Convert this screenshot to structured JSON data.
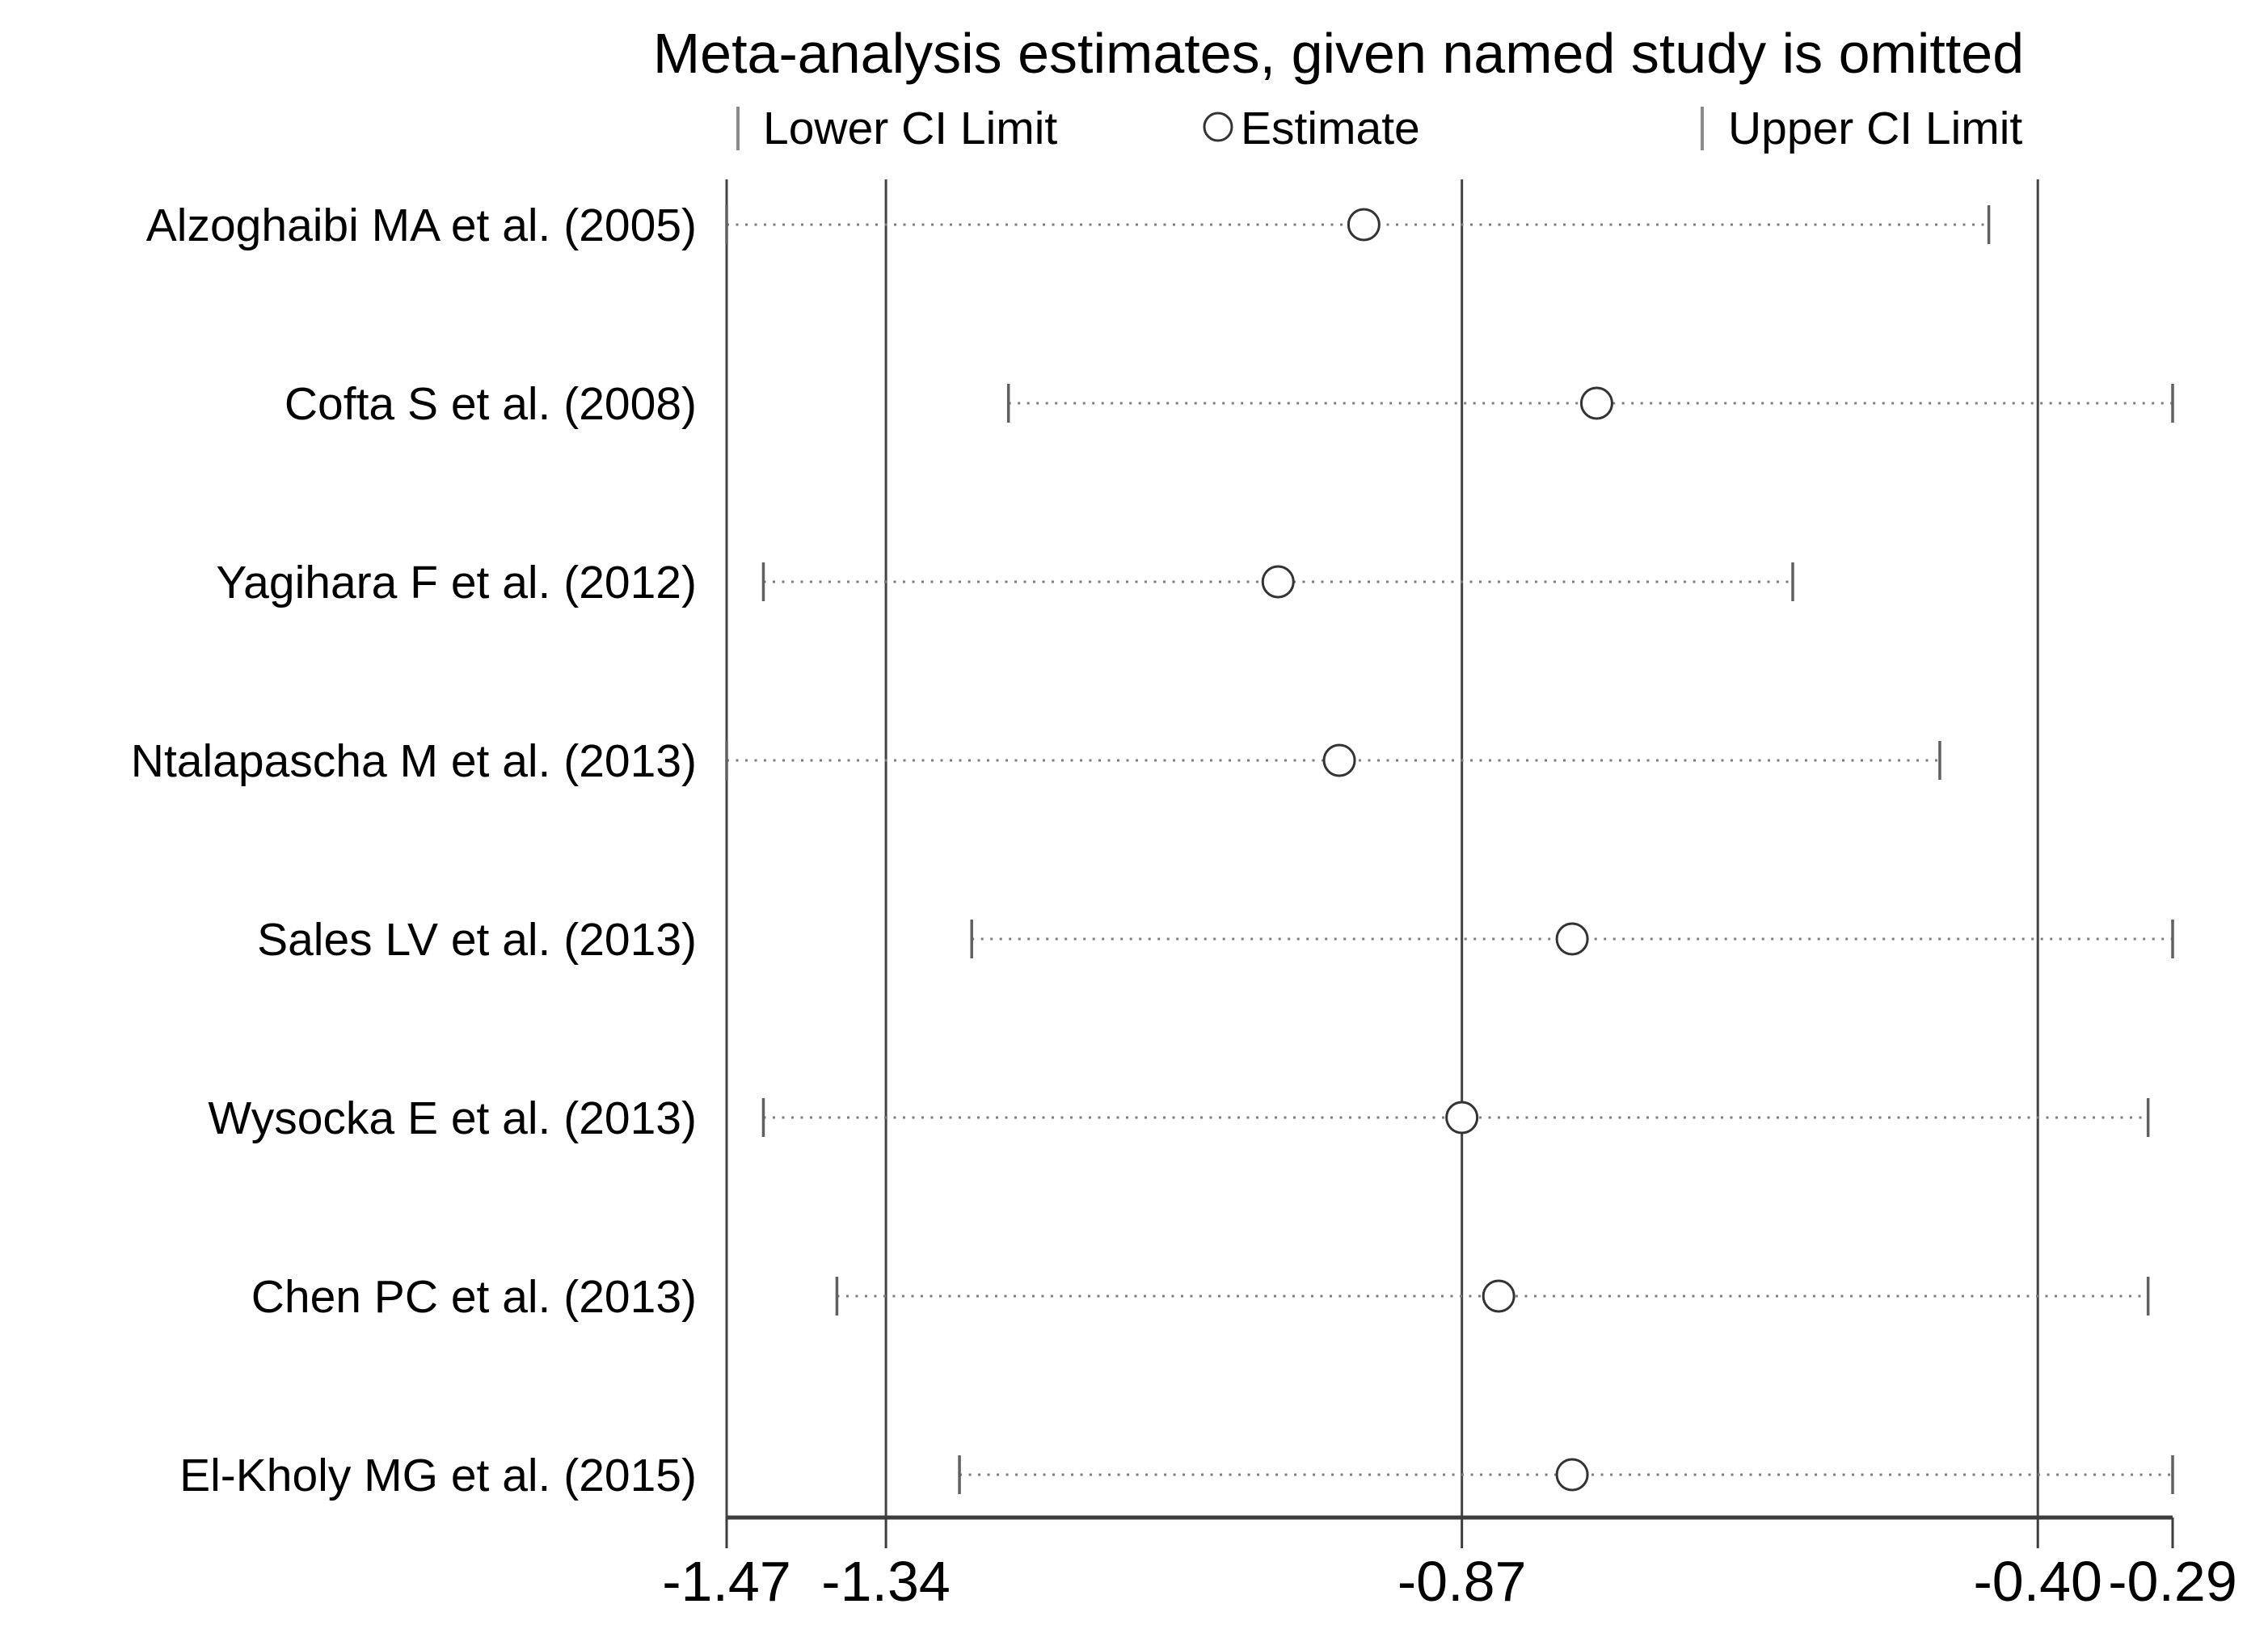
{
  "title": "Meta-analysis estimates, given named study is omitted",
  "legend": {
    "lower_label": "Lower CI Limit",
    "estimate_label": "Estimate",
    "upper_label": "Upper CI Limit"
  },
  "colors": {
    "text": "#000000",
    "grid_line": "#444444",
    "axis_line": "#3d3d3d",
    "ci_dotted_line": "#7d7d7d",
    "ci_tick": "#606060",
    "marker_stroke": "#333333",
    "legend_tick": "#8a8a8a",
    "background": "#ffffff"
  },
  "chart_data": {
    "type": "scatter",
    "subtype": "leave-one-out-sensitivity-forest-plot",
    "title": "Meta-analysis estimates, given named study is omitted",
    "legend_entries": [
      "Lower CI Limit",
      "Estimate",
      "Upper CI Limit"
    ],
    "xlim": [
      -1.47,
      -0.29
    ],
    "grid": true,
    "gridline_values": [
      -1.47,
      -1.34,
      -0.87,
      -0.4
    ],
    "x_ticks": [
      {
        "label": "-1.47",
        "value": -1.47
      },
      {
        "label": "-1.34",
        "value": -1.34
      },
      {
        "label": "-0.87",
        "value": -0.87
      },
      {
        "label": "-0.40",
        "value": -0.4
      },
      {
        "label": "-0.29",
        "value": -0.29
      }
    ],
    "studies": [
      {
        "label": "Alzoghaibi MA et al. (2005)",
        "lower": -1.47,
        "estimate": -0.95,
        "upper": -0.44
      },
      {
        "label": "Cofta S et al. (2008)",
        "lower": -1.24,
        "estimate": -0.76,
        "upper": -0.29
      },
      {
        "label": "Yagihara F et al. (2012)",
        "lower": -1.44,
        "estimate": -1.02,
        "upper": -0.6
      },
      {
        "label": "Ntalapascha M et al. (2013)",
        "lower": -1.47,
        "estimate": -0.97,
        "upper": -0.48
      },
      {
        "label": "Sales LV et al. (2013)",
        "lower": -1.27,
        "estimate": -0.78,
        "upper": -0.29
      },
      {
        "label": "Wysocka E et al. (2013)",
        "lower": -1.44,
        "estimate": -0.87,
        "upper": -0.31
      },
      {
        "label": "Chen PC et al. (2013)",
        "lower": -1.38,
        "estimate": -0.84,
        "upper": -0.31
      },
      {
        "label": "El-Kholy MG et al. (2015)",
        "lower": -1.28,
        "estimate": -0.78,
        "upper": -0.29
      }
    ]
  }
}
